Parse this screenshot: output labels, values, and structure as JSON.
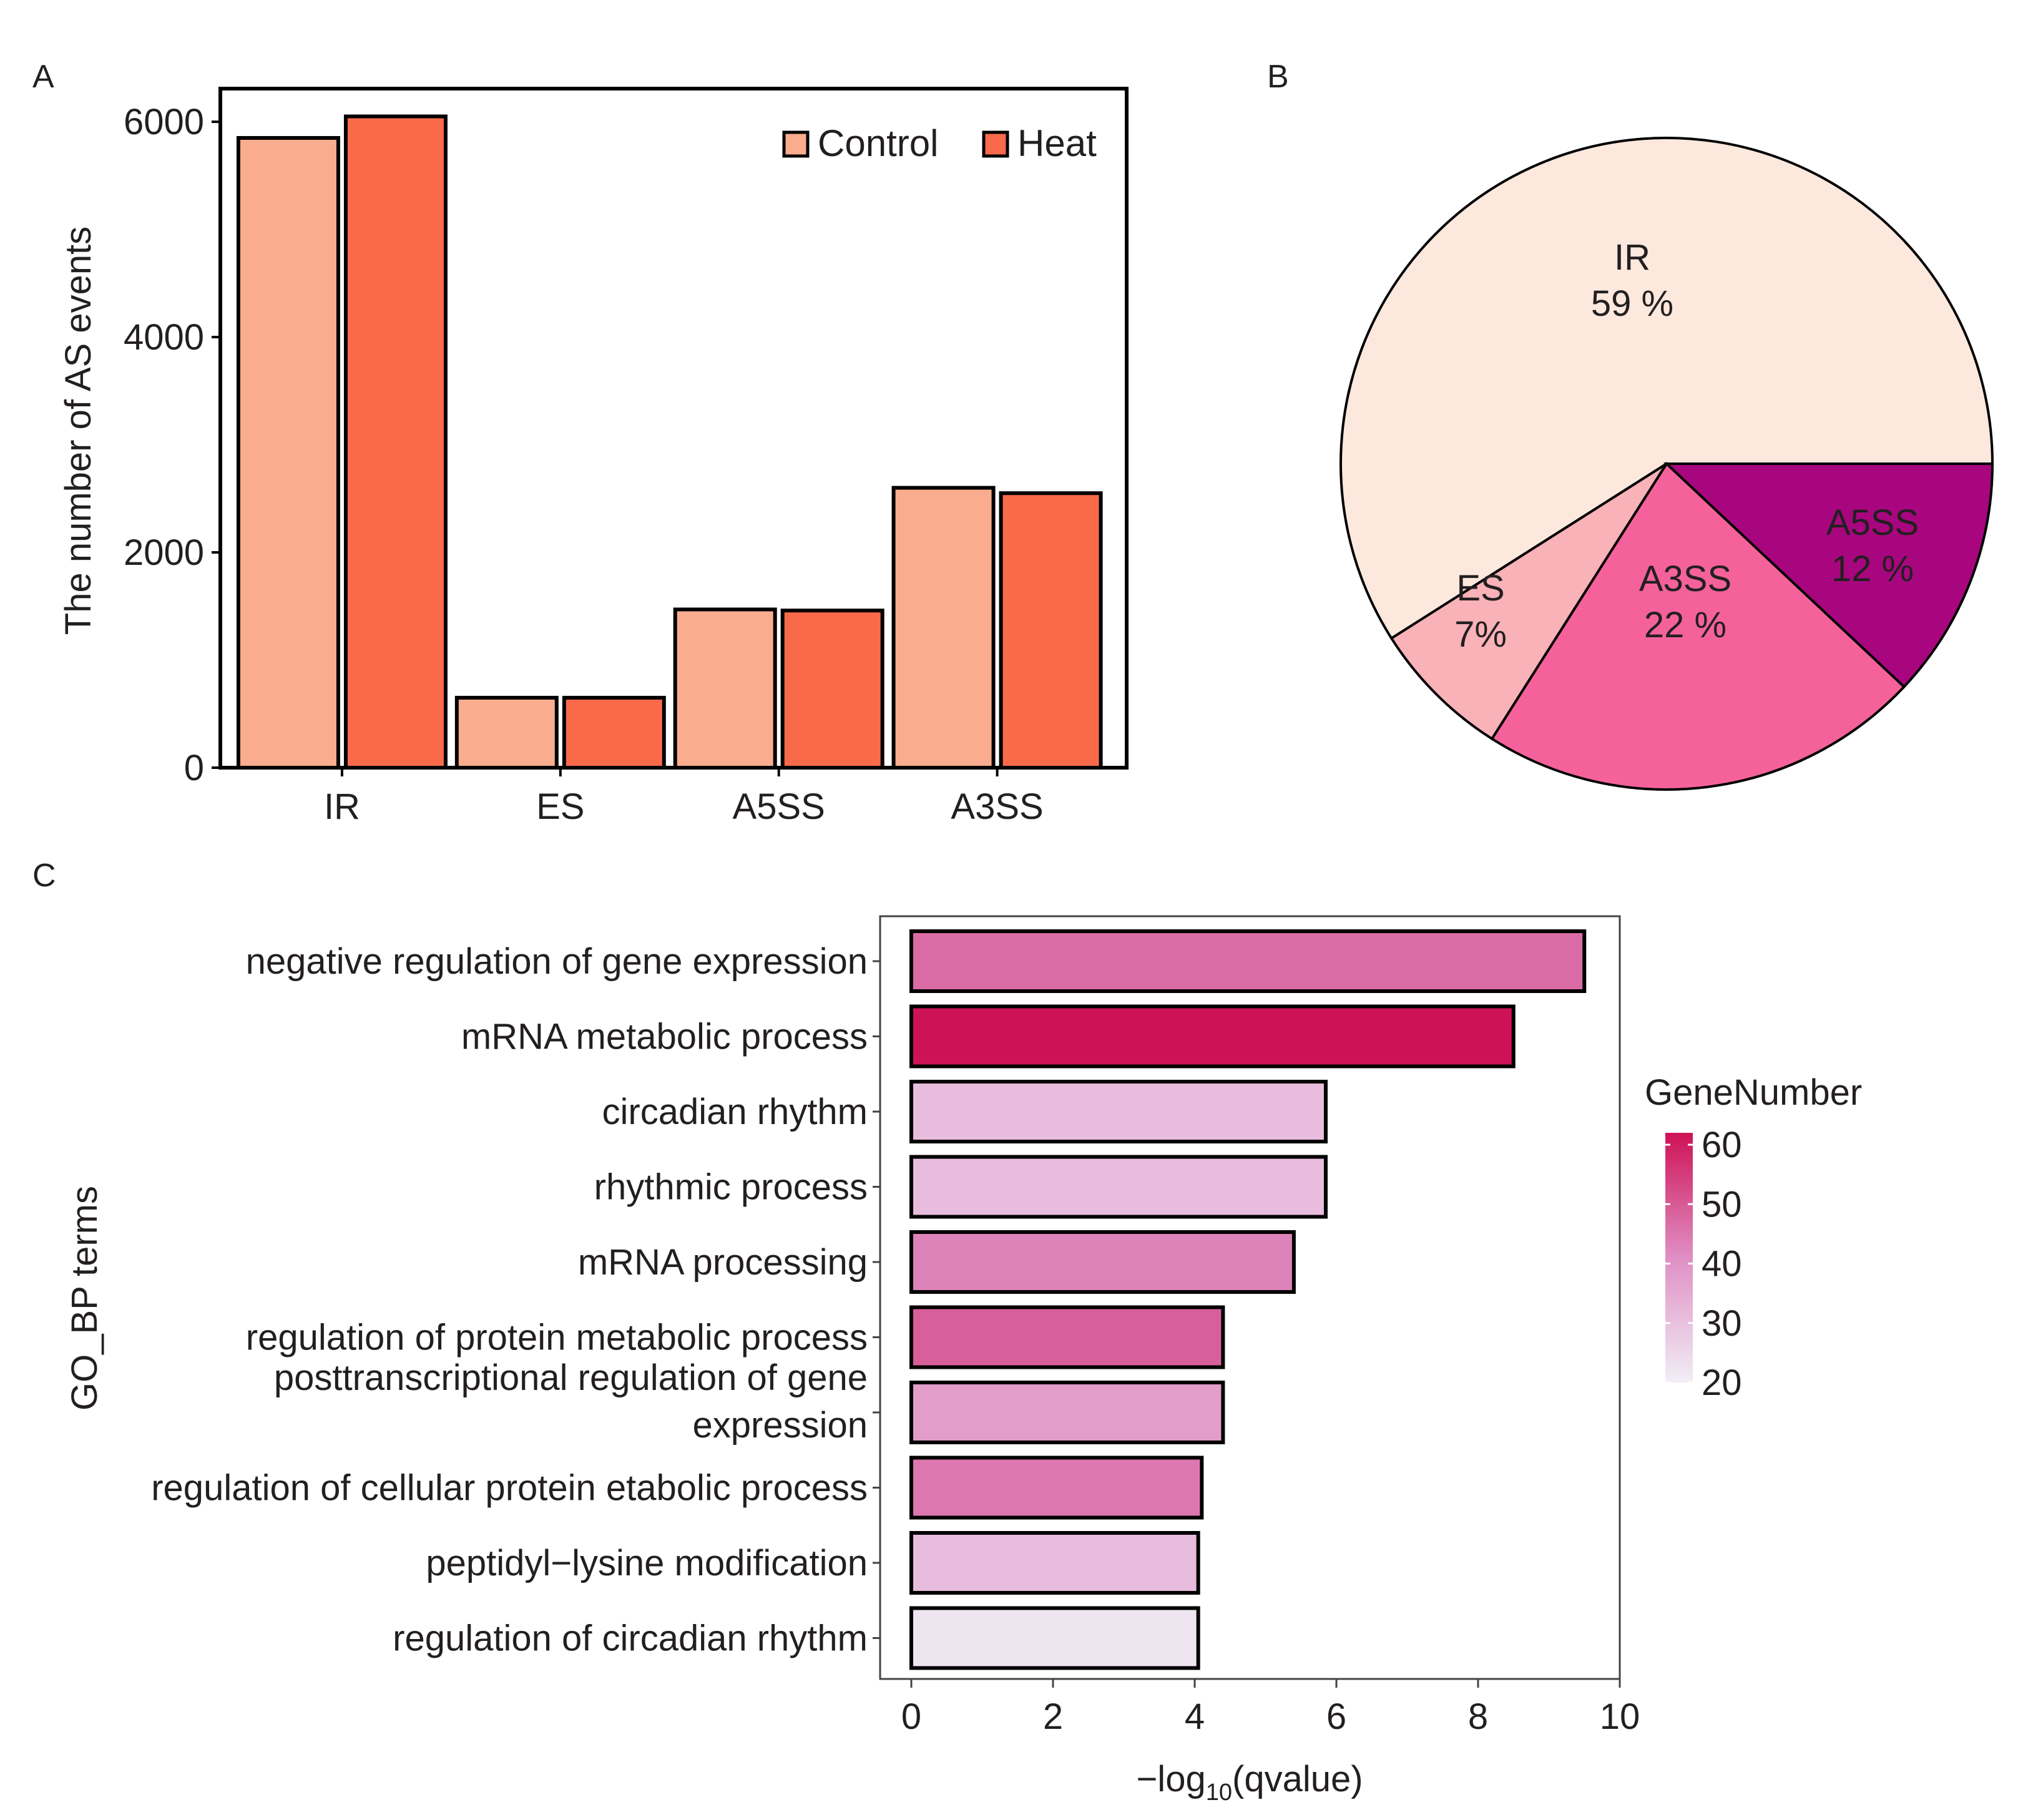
{
  "panels": {
    "a": "A",
    "b": "B",
    "c": "C"
  },
  "chart_data": [
    {
      "id": "A",
      "type": "bar",
      "title": "",
      "xlabel": "",
      "ylabel": "The number of AS events",
      "categories": [
        "IR",
        "ES",
        "A5SS",
        "A3SS"
      ],
      "series": [
        {
          "name": "Control",
          "color": "#f9ad8e",
          "values": [
            5850,
            650,
            1470,
            2600
          ]
        },
        {
          "name": "Heat",
          "color": "#f96a4b",
          "values": [
            6050,
            650,
            1460,
            2550
          ]
        }
      ],
      "ylim": [
        0,
        6250
      ],
      "yticks": [
        0,
        2000,
        4000,
        6000
      ],
      "ytick_labels": [
        "0",
        "2000",
        "4000",
        "6000"
      ],
      "legend": "top-right",
      "grid": false
    },
    {
      "id": "B",
      "type": "pie",
      "slices": [
        {
          "name": "IR",
          "label": "59 %",
          "value": 59,
          "color": "#fde8dd"
        },
        {
          "name": "ES",
          "label": "7%",
          "value": 7,
          "color": "#f8b2b8"
        },
        {
          "name": "A3SS",
          "label": "22 %",
          "value": 22,
          "color": "#f5629b"
        },
        {
          "name": "A5SS",
          "label": "12 %",
          "value": 12,
          "color": "#a8067e"
        }
      ],
      "start": "3 o'clock, counter-clockwise"
    },
    {
      "id": "C",
      "type": "bar",
      "orientation": "horizontal",
      "xlabel_prefix": "−log",
      "xlabel_sub": "10",
      "xlabel_suffix": "(qvalue)",
      "ylabel": "GO_BP terms",
      "xlim": [
        0,
        10
      ],
      "xticks": [
        0,
        2,
        4,
        6,
        8,
        10
      ],
      "xtick_labels": [
        "0",
        "2",
        "4",
        "6",
        "8",
        "10"
      ],
      "bars": [
        {
          "term": [
            "negative regulation of gene expression"
          ],
          "value": 9.5,
          "gene_number": 47
        },
        {
          "term": [
            "mRNA metabolic process"
          ],
          "value": 8.5,
          "gene_number": 62
        },
        {
          "term": [
            "circadian rhythm"
          ],
          "value": 5.85,
          "gene_number": 31
        },
        {
          "term": [
            "rhythmic process"
          ],
          "value": 5.85,
          "gene_number": 31
        },
        {
          "term": [
            "mRNA processing"
          ],
          "value": 5.4,
          "gene_number": 43
        },
        {
          "term": [
            "regulation of protein metabolic process"
          ],
          "value": 4.4,
          "gene_number": 49
        },
        {
          "term": [
            "posttranscriptional regulation of gene",
            "expression"
          ],
          "value": 4.4,
          "gene_number": 38
        },
        {
          "term": [
            "regulation of cellular protein etabolic process"
          ],
          "value": 4.1,
          "gene_number": 45
        },
        {
          "term": [
            "peptidyl−lysine modification"
          ],
          "value": 4.05,
          "gene_number": 31
        },
        {
          "term": [
            "regulation of circadian rhythm"
          ],
          "value": 4.05,
          "gene_number": 22
        }
      ],
      "colorbar": {
        "title": "GeneNumber",
        "min": 20,
        "max": 62,
        "low_color": "#f1eef6",
        "mid_color": "#e08fc4",
        "high_color": "#ce1256",
        "ticks": [
          20,
          30,
          40,
          50,
          60
        ],
        "tick_labels": [
          "20",
          "30",
          "40",
          "50",
          "60"
        ]
      }
    }
  ]
}
